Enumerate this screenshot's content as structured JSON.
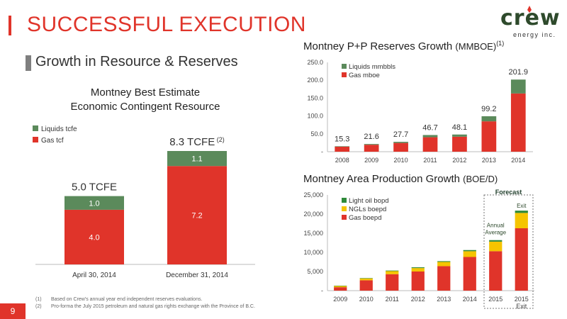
{
  "header": {
    "title": "SUCCESSFUL EXECUTION",
    "subtitle": "Growth in Resource & Reserves",
    "logo_word": "crew",
    "logo_sub": "energy inc."
  },
  "colors": {
    "accent": "#e0342a",
    "gas": "#e0342a",
    "liquids": "#5b8a5b",
    "ngl": "#f5c400",
    "light_oil": "#2f8a3a"
  },
  "footnotes": [
    {
      "num": "(1)",
      "text": "Based on Crew's annual year end independent reserves evaluations."
    },
    {
      "num": "(2)",
      "text": "Pro-forma the July 2015 petroleum and natural gas rights exchange with the Province of B.C."
    }
  ],
  "page_number": "9",
  "chart_data": [
    {
      "type": "bar",
      "stacked": true,
      "title_lines": [
        "Montney Best Estimate",
        "Economic Contingent Resource"
      ],
      "categories": [
        "April 30, 2014",
        "December 31, 2014"
      ],
      "series": [
        {
          "name": "Gas tcf",
          "values": [
            4.0,
            7.2
          ],
          "labels": [
            "4.0",
            "7.2"
          ]
        },
        {
          "name": "Liquids tcfe",
          "values": [
            1.0,
            1.1
          ],
          "labels": [
            "1.0",
            "1.1"
          ]
        }
      ],
      "totals": [
        "5.0 TCFE",
        "8.3 TCFE"
      ],
      "total_note": "(2)",
      "legend": [
        "Liquids tcfe",
        "Gas tcf"
      ],
      "legend_position": "top-left",
      "ylim": [
        0,
        10
      ]
    },
    {
      "type": "bar",
      "stacked": true,
      "title": "Montney P+P Reserves Growth",
      "title_unit": "(MMBOE)",
      "title_note": "(1)",
      "categories": [
        "2008",
        "2009",
        "2010",
        "2011",
        "2012",
        "2013",
        "2014"
      ],
      "series": [
        {
          "name": "Gas mboe",
          "values": [
            14.0,
            19.5,
            24.5,
            40.5,
            42.0,
            85.0,
            163.0
          ]
        },
        {
          "name": "Liquids mmbbls",
          "values": [
            1.3,
            2.1,
            3.2,
            6.2,
            6.1,
            14.2,
            38.9
          ]
        }
      ],
      "total_labels": [
        "15.3",
        "21.6",
        "27.7",
        "46.7",
        "48.1",
        "99.2",
        "201.9"
      ],
      "y_ticks": [
        "-",
        "50.0",
        "100.0",
        "150.0",
        "200.0",
        "250.0"
      ],
      "ylim": [
        0,
        250
      ],
      "legend": [
        "Liquids mmbbls",
        "Gas mboe"
      ],
      "legend_position": "top-left"
    },
    {
      "type": "bar",
      "stacked": true,
      "title": "Montney Area Production Growth",
      "title_unit": "(BOE/D)",
      "categories": [
        "2009",
        "2010",
        "2011",
        "2012",
        "2013",
        "2014",
        "2015",
        "2015\nExit"
      ],
      "category_lines": [
        [
          "2009"
        ],
        [
          "2010"
        ],
        [
          "2011"
        ],
        [
          "2012"
        ],
        [
          "2013"
        ],
        [
          "2014"
        ],
        [
          "2015"
        ],
        [
          "2015",
          "Exit"
        ]
      ],
      "series": [
        {
          "name": "Gas boepd",
          "values": [
            900,
            2700,
            4300,
            5000,
            6400,
            8800,
            10300,
            16300
          ]
        },
        {
          "name": "NGLs boepd",
          "values": [
            300,
            500,
            800,
            900,
            1100,
            1500,
            2500,
            4000
          ]
        },
        {
          "name": "Light oil bopd",
          "values": [
            100,
            100,
            150,
            200,
            200,
            300,
            400,
            600
          ]
        }
      ],
      "y_ticks": [
        "-",
        "5,000",
        "10,000",
        "15,000",
        "20,000",
        "25,000"
      ],
      "ylim": [
        0,
        25000
      ],
      "legend": [
        "Light oil bopd",
        "NGLs boepd",
        "Gas boepd"
      ],
      "legend_position": "top-left",
      "annotations": {
        "forecast": "Forecast",
        "annual_average": [
          "Annual",
          "Average"
        ],
        "exit": "Exit"
      }
    }
  ]
}
